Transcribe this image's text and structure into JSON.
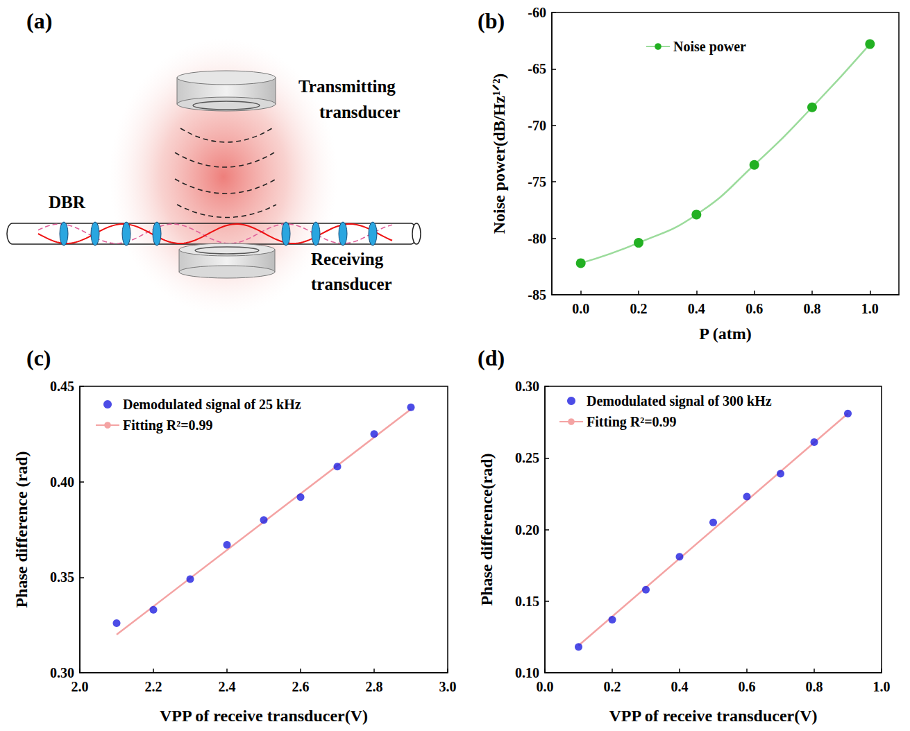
{
  "diagram": {
    "panel": "(a)",
    "labels": {
      "dbr": "DBR",
      "transmitting": "Transmitting transducer",
      "receiving": "Receiving transducer"
    }
  },
  "chart_data": [
    {
      "panel": "(b)",
      "type": "line",
      "x_label": "P (atm)",
      "y_label": "Noise power(dB/Hz¹ᐟ²)",
      "xlim": [
        -0.1,
        1.1
      ],
      "xticks": [
        {
          "value": 0,
          "label": "0.0"
        },
        0.2,
        0.4,
        0.6,
        0.8,
        {
          "value": 1,
          "label": "1.0"
        }
      ],
      "ylim": [
        -85,
        -60
      ],
      "yticks": [
        -85,
        -80,
        -75,
        -70,
        -65,
        -60
      ],
      "grid": false,
      "legend": "upper center",
      "series": [
        {
          "name": "Noise power",
          "type": "line",
          "color": "#22b022",
          "marker": "circle",
          "line_style": "solid",
          "x": [
            0,
            0.2,
            0.4,
            0.6,
            0.8,
            1.0
          ],
          "values": [
            -82.2,
            -80.4,
            -77.9,
            -73.5,
            -68.4,
            -62.8
          ]
        }
      ]
    },
    {
      "panel": "(c)",
      "type": "scatter",
      "x_label": "VPP of receive transducer(V)",
      "y_label": "Phase difference (rad)",
      "xlim": [
        2.0,
        3.0
      ],
      "xticks": [
        {
          "value": 2,
          "label": "2.0"
        },
        2.2,
        2.4,
        2.6,
        2.8,
        {
          "value": 3,
          "label": "3.0"
        }
      ],
      "ylim": [
        0.3,
        0.45
      ],
      "yticks": [
        {
          "value": 0.3,
          "label": "0.30"
        },
        0.35,
        {
          "value": 0.4,
          "label": "0.40"
        },
        0.45
      ],
      "grid": false,
      "legend": "upper left",
      "series": [
        {
          "name": "Demodulated signal of 25 kHz",
          "type": "scatter",
          "color": "#1f1fe0",
          "marker": "circle",
          "x": [
            2.1,
            2.2,
            2.3,
            2.4,
            2.5,
            2.6,
            2.7,
            2.8,
            2.9
          ],
          "values": [
            0.326,
            0.333,
            0.349,
            0.367,
            0.38,
            0.392,
            0.408,
            0.425,
            0.439
          ]
        },
        {
          "name": "Fitting R²=0.99",
          "type": "line",
          "color": "#f4a3a3",
          "line_style": "solid",
          "x": [
            2.1,
            2.9
          ],
          "values": [
            0.32,
            0.438
          ]
        }
      ]
    },
    {
      "panel": "(d)",
      "type": "scatter",
      "x_label": "VPP of receive transducer(V)",
      "y_label": "Phase difference(rad)",
      "xlim": [
        0.0,
        1.0
      ],
      "xticks": [
        {
          "value": 0,
          "label": "0.0"
        },
        0.2,
        0.4,
        0.6,
        0.8,
        {
          "value": 1,
          "label": "1.0"
        }
      ],
      "ylim": [
        0.1,
        0.3
      ],
      "yticks": [
        {
          "value": 0.1,
          "label": "0.10"
        },
        0.15,
        {
          "value": 0.2,
          "label": "0.20"
        },
        0.25,
        {
          "value": 0.3,
          "label": "0.30"
        }
      ],
      "grid": false,
      "legend": "upper left",
      "series": [
        {
          "name": "Demodulated signal of 300 kHz",
          "type": "scatter",
          "color": "#1f1fe0",
          "marker": "circle",
          "x": [
            0.1,
            0.2,
            0.3,
            0.4,
            0.5,
            0.6,
            0.7,
            0.8,
            0.9
          ],
          "values": [
            0.118,
            0.137,
            0.158,
            0.181,
            0.205,
            0.223,
            0.239,
            0.261,
            0.281
          ]
        },
        {
          "name": "Fitting R²=0.99",
          "type": "line",
          "color": "#f4a3a3",
          "line_style": "solid",
          "x": [
            0.1,
            0.9
          ],
          "values": [
            0.119,
            0.281
          ]
        }
      ]
    }
  ]
}
